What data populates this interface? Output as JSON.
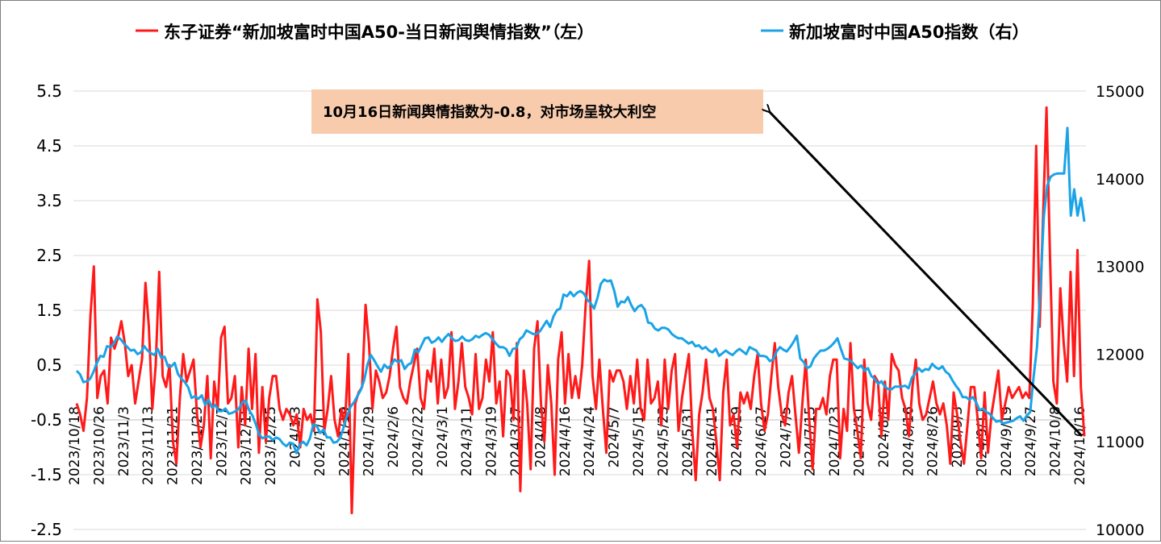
{
  "chart_data": {
    "type": "line",
    "legend_position": "top",
    "grid": "horizontal",
    "series": [
      {
        "name": "东子证券“新加坡富时中国A50-当日新闻舆情指数”（左）",
        "axis": "left",
        "color": "#ff1a1a",
        "values": [
          -0.2,
          -0.4,
          -0.7,
          -0.1,
          1.4,
          2.3,
          -0.1,
          0.3,
          0.4,
          -0.2,
          1.0,
          0.8,
          1.0,
          1.3,
          0.9,
          0.3,
          0.5,
          -0.2,
          0.2,
          0.6,
          2.0,
          1.2,
          -0.3,
          0.5,
          2.2,
          0.3,
          0.1,
          0.5,
          -0.9,
          -1.3,
          -0.1,
          0.7,
          0.2,
          0.4,
          0.6,
          -0.4,
          -1.0,
          -0.6,
          0.3,
          -1.2,
          0.2,
          -0.3,
          1.0,
          1.2,
          -0.2,
          -0.1,
          0.3,
          -1.0,
          0.1,
          -0.6,
          0.8,
          -0.3,
          0.7,
          -1.1,
          0.1,
          -0.9,
          -0.1,
          0.3,
          0.3,
          -0.3,
          -0.5,
          -0.3,
          -0.4,
          -0.6,
          -0.4,
          -1.0,
          -0.3,
          -0.5,
          -0.4,
          -0.7,
          1.7,
          1.1,
          -0.7,
          -0.3,
          0.3,
          -0.5,
          -0.8,
          -0.3,
          -0.6,
          0.7,
          -2.2,
          -0.2,
          0.0,
          0.1,
          1.6,
          0.9,
          -0.3,
          0.4,
          0.2,
          -0.1,
          0.0,
          0.3,
          0.8,
          1.2,
          0.1,
          -0.1,
          -0.2,
          0.2,
          0.5,
          0.8,
          -0.1,
          -0.3,
          0.4,
          0.2,
          0.8,
          -0.2,
          0.6,
          -0.1,
          0.1,
          1.1,
          -0.3,
          0.2,
          0.9,
          0.1,
          -0.1,
          -0.4,
          0.7,
          -0.3,
          -0.1,
          0.6,
          0.2,
          1.1,
          -0.2,
          0.2,
          -0.8,
          0.4,
          0.3,
          -0.5,
          0.9,
          -1.8,
          0.4,
          -0.2,
          -1.4,
          0.8,
          1.3,
          -0.2,
          -0.9,
          0.5,
          -0.2,
          -1.5,
          0.6,
          1.1,
          -0.2,
          0.7,
          -0.1,
          0.3,
          -0.1,
          0.5,
          1.6,
          2.4,
          0.3,
          -0.3,
          0.6,
          -0.3,
          -1.1,
          0.4,
          0.2,
          0.4,
          0.4,
          0.2,
          -0.3,
          0.3,
          -0.2,
          0.6,
          -0.3,
          -0.5,
          0.6,
          -0.2,
          -0.1,
          0.2,
          -0.6,
          0.6,
          -0.3,
          0.4,
          0.7,
          -0.7,
          -0.1,
          0.3,
          0.7,
          -0.7,
          -1.6,
          -0.4,
          0.0,
          0.6,
          -0.1,
          -0.3,
          -0.9,
          -1.6,
          0.0,
          0.6,
          -0.6,
          -0.4,
          -1.0,
          0.0,
          -0.2,
          0.0,
          -0.3,
          0.3,
          0.7,
          -0.2,
          -0.7,
          -0.4,
          0.3,
          0.9,
          0.1,
          -0.4,
          -0.6,
          0.0,
          0.3,
          -0.4,
          -1.1,
          -0.2,
          0.6,
          -0.5,
          -1.4,
          -0.3,
          -0.3,
          -0.1,
          -0.4,
          0.3,
          0.6,
          0.6,
          -1.2,
          -0.3,
          -0.7,
          0.9,
          -0.3,
          -0.7,
          -1.2,
          0.6,
          -0.2,
          -0.5,
          0.3,
          0.2,
          -0.8,
          0.2,
          -0.5,
          0.7,
          0.5,
          0.4,
          -0.1,
          -0.3,
          -0.8,
          0.1,
          0.6,
          -0.2,
          -0.5,
          -0.4,
          -0.1,
          0.2,
          -0.2,
          -0.4,
          -0.2,
          -0.6,
          -1.3,
          0.0,
          -0.4,
          -0.9,
          -1.3,
          -0.6,
          0.1,
          0.1,
          -0.5,
          -1.2,
          0.0,
          -1.1,
          -0.4,
          0.0,
          0.4,
          -0.5,
          -0.2,
          0.1,
          -0.1,
          0.0,
          0.1,
          -0.1,
          0.0,
          -0.1,
          1.6,
          4.5,
          1.2,
          3.2,
          5.2,
          2.5,
          0.2,
          -0.2,
          1.9,
          0.9,
          0.2,
          2.2,
          0.3,
          2.6,
          0.1,
          -0.8
        ]
      },
      {
        "name": "新加坡富时中国A50指数（右）",
        "axis": "right",
        "color": "#1aa3e6",
        "values": [
          11810,
          11770,
          11680,
          11690,
          11720,
          11800,
          11900,
          11980,
          11970,
          12090,
          12080,
          12120,
          12200,
          12170,
          12120,
          12080,
          12040,
          12050,
          12000,
          12020,
          12090,
          12040,
          12010,
          11990,
          12060,
          11960,
          11970,
          11860,
          11860,
          11900,
          11770,
          11720,
          11680,
          11620,
          11500,
          11520,
          11490,
          11530,
          11420,
          11480,
          11390,
          11420,
          11350,
          11350,
          11380,
          11320,
          11330,
          11350,
          11380,
          11450,
          11470,
          11360,
          11300,
          11200,
          11080,
          11040,
          11060,
          11060,
          11020,
          11050,
          11030,
          10980,
          10950,
          10990,
          10980,
          10870,
          10970,
          11000,
          10960,
          11040,
          11200,
          11180,
          11100,
          11140,
          11050,
          11050,
          10990,
          11000,
          11050,
          11170,
          11300,
          11400,
          11450,
          11520,
          11590,
          11700,
          11880,
          11990,
          11930,
          11860,
          11800,
          11880,
          11840,
          11870,
          11940,
          11910,
          11930,
          11830,
          11880,
          11900,
          12050,
          12020,
          12100,
          12180,
          12190,
          12130,
          12150,
          12190,
          12140,
          12190,
          12230,
          12180,
          12150,
          12160,
          12200,
          12160,
          12150,
          12170,
          12210,
          12190,
          12220,
          12240,
          12220,
          12170,
          12120,
          12080,
          12080,
          12060,
          11980,
          12060,
          12070,
          12170,
          12200,
          12270,
          12250,
          12230,
          12230,
          12260,
          12320,
          12380,
          12310,
          12430,
          12500,
          12520,
          12680,
          12660,
          12710,
          12660,
          12700,
          12720,
          12690,
          12620,
          12580,
          12520,
          12640,
          12800,
          12850,
          12830,
          12840,
          12720,
          12540,
          12600,
          12590,
          12650,
          12560,
          12490,
          12540,
          12560,
          12510,
          12360,
          12350,
          12290,
          12270,
          12300,
          12300,
          12280,
          12230,
          12200,
          12180,
          12180,
          12150,
          12120,
          12140,
          12090,
          12100,
          12060,
          12080,
          12040,
          12020,
          12060,
          11980,
          12010,
          12040,
          12010,
          11990,
          12030,
          12060,
          12030,
          12000,
          12080,
          12060,
          12040,
          11980,
          11980,
          11970,
          11920,
          11940,
          12030,
          12080,
          12050,
          12030,
          12080,
          12140,
          12210,
          11950,
          11910,
          11840,
          11860,
          11950,
          12000,
          12040,
          12040,
          12060,
          12090,
          12130,
          12180,
          12060,
          11950,
          11940,
          11920,
          11880,
          11840,
          11870,
          11810,
          11840,
          11750,
          11720,
          11660,
          11690,
          11630,
          11600,
          11600,
          11630,
          11630,
          11630,
          11640,
          11610,
          11730,
          11780,
          11840,
          11800,
          11830,
          11820,
          11890,
          11850,
          11830,
          11860,
          11800,
          11770,
          11700,
          11640,
          11590,
          11510,
          11510,
          11480,
          11510,
          11450,
          11360,
          11380,
          11340,
          11320,
          11270,
          11230,
          11240,
          11210,
          11220,
          11230,
          11240,
          11270,
          11290,
          11240,
          11300,
          11340,
          11740,
          12080,
          12750,
          13560,
          13920,
          14020,
          14050,
          14060,
          14060,
          14060,
          14580,
          13580,
          13880,
          13580,
          13780,
          13510
        ]
      }
    ],
    "x_tick_labels": [
      "2023/10/18",
      "2023/10/26",
      "2023/11/3",
      "2023/11/13",
      "2023/11/21",
      "2023/11/29",
      "2023/12/7",
      "2023/12/15",
      "2023/12/25",
      "2024/1/3",
      "2024/1/11",
      "2024/1/19",
      "2024/1/29",
      "2024/2/6",
      "2024/2/22",
      "2024/3/1",
      "2024/3/11",
      "2024/3/19",
      "2024/3/27",
      "2024/4/8",
      "2024/4/16",
      "2024/4/24",
      "2024/5/7",
      "2024/5/15",
      "2024/5/23",
      "2024/5/31",
      "2024/6/11",
      "2024/6/19",
      "2024/6/27",
      "2024/7/5",
      "2024/7/15",
      "2024/7/23",
      "2024/7/31",
      "2024/8/8",
      "2024/8/16",
      "2024/8/26",
      "2024/9/3",
      "2024/9/11",
      "2024/9/19",
      "2024/9/27",
      "2024/10/8",
      "2024/10/16"
    ],
    "y_left": {
      "min": -2.5,
      "max": 5.5,
      "ticks": [
        "5.5",
        "4.5",
        "3.5",
        "2.5",
        "1.5",
        "0.5",
        "-0.5",
        "-1.5",
        "-2.5"
      ]
    },
    "y_right": {
      "min": 10000,
      "max": 15000,
      "ticks": [
        "15000",
        "14000",
        "13000",
        "12000",
        "11000",
        "10000"
      ]
    },
    "annotation": {
      "text": "10月16日新闻舆情指数为-0.8，对市场呈较大利空",
      "background": "#f8cbad"
    }
  }
}
